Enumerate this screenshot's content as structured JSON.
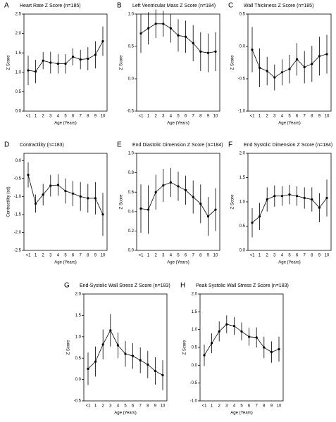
{
  "chart_data": [
    {
      "type": "line",
      "label": "A",
      "title": "Heart Rate Z Score (n=185)",
      "x_label": "Age (Years)",
      "y_label": "Z Score",
      "categories": [
        "<1",
        "1",
        "2",
        "3",
        "4",
        "5",
        "6",
        "7",
        "8",
        "9",
        "10"
      ],
      "series": [
        {
          "color": "#000000",
          "values": [
            1.05,
            1.02,
            1.3,
            1.25,
            1.22,
            1.22,
            1.4,
            1.33,
            1.35,
            1.45,
            1.8
          ],
          "errors": [
            0.38,
            0.3,
            0.22,
            0.28,
            0.25,
            0.25,
            0.22,
            0.25,
            0.3,
            0.35,
            0.38
          ]
        }
      ],
      "ylim": [
        0,
        2.5
      ],
      "yticks": [
        {
          "value": 0,
          "label": "0.0"
        },
        0.5,
        {
          "value": 1,
          "label": "1.0"
        },
        1.5,
        {
          "value": 2,
          "label": "2.0"
        },
        2.5
      ]
    },
    {
      "type": "line",
      "label": "B",
      "title": "Left Ventricular Mass Z Score (n=184)",
      "x_label": "Age (Years)",
      "y_label": "Z Score",
      "categories": [
        "<1",
        "1",
        "2",
        "3",
        "4",
        "5",
        "6",
        "7",
        "8",
        "9",
        "10"
      ],
      "series": [
        {
          "color": "#000000",
          "values": [
            0.7,
            0.78,
            0.85,
            0.85,
            0.78,
            0.67,
            0.65,
            0.55,
            0.42,
            0.4,
            0.42
          ],
          "errors": [
            0.3,
            0.25,
            0.22,
            0.2,
            0.22,
            0.25,
            0.25,
            0.28,
            0.3,
            0.3,
            0.3
          ]
        }
      ],
      "ylim": [
        -0.5,
        1.0
      ],
      "yticks": [
        -0.5,
        {
          "value": 0,
          "label": "0.0"
        },
        0.5,
        {
          "value": 1,
          "label": "1.0"
        }
      ]
    },
    {
      "type": "line",
      "label": "C",
      "title": "Wall Thickness Z Score (n=185)",
      "x_label": "Age (Years)",
      "y_label": "Z Score",
      "categories": [
        "<1",
        "1",
        "2",
        "3",
        "4",
        "5",
        "6",
        "7",
        "8",
        "9",
        "10"
      ],
      "series": [
        {
          "color": "#000000",
          "values": [
            -0.05,
            -0.33,
            -0.38,
            -0.48,
            -0.4,
            -0.35,
            -0.2,
            -0.32,
            -0.27,
            -0.15,
            -0.12
          ],
          "errors": [
            0.35,
            0.3,
            0.22,
            0.2,
            0.2,
            0.22,
            0.25,
            0.25,
            0.28,
            0.3,
            0.3
          ]
        }
      ],
      "ylim": [
        -1.0,
        0.5
      ],
      "yticks": [
        {
          "value": -1,
          "label": "-1.0"
        },
        -0.5,
        {
          "value": 0,
          "label": "0.0"
        },
        0.5
      ]
    },
    {
      "type": "line",
      "label": "D",
      "title": "Contractility (n=183)",
      "x_label": "Age (Years)",
      "y_label": "Contractility (sd)",
      "categories": [
        "<1",
        "1",
        "2",
        "3",
        "4",
        "5",
        "6",
        "7",
        "8",
        "9",
        "10"
      ],
      "series": [
        {
          "color": "#000000",
          "values": [
            -0.4,
            -1.2,
            -0.95,
            -0.7,
            -0.68,
            -0.85,
            -0.92,
            -1.0,
            -1.05,
            -1.05,
            -1.5
          ],
          "errors": [
            0.35,
            0.25,
            0.3,
            0.3,
            0.3,
            0.35,
            0.35,
            0.4,
            0.4,
            0.45,
            0.6
          ]
        }
      ],
      "ylim": [
        -2.5,
        0.2
      ],
      "yticks": [
        {
          "value": 0,
          "label": "0.0"
        },
        -0.5,
        {
          "value": -1,
          "label": "-1.0"
        },
        -1.5,
        {
          "value": -2,
          "label": "-2.0"
        },
        -2.5
      ]
    },
    {
      "type": "line",
      "label": "E",
      "title": "End Diastolic Dimension Z Score (n=184)",
      "x_label": "Age (Years)",
      "y_label": "Z Score",
      "categories": [
        "<1",
        "1",
        "2",
        "3",
        "4",
        "5",
        "6",
        "7",
        "8",
        "9",
        "10"
      ],
      "series": [
        {
          "color": "#000000",
          "values": [
            0.43,
            0.42,
            0.6,
            0.67,
            0.7,
            0.66,
            0.62,
            0.55,
            0.48,
            0.35,
            0.42
          ],
          "errors": [
            0.25,
            0.25,
            0.18,
            0.17,
            0.15,
            0.15,
            0.15,
            0.17,
            0.2,
            0.2,
            0.22
          ]
        }
      ],
      "ylim": [
        0,
        1.0
      ],
      "yticks": [
        {
          "value": 0,
          "label": "0.0"
        },
        0.2,
        0.4,
        0.6,
        0.8,
        {
          "value": 1,
          "label": "1.0"
        }
      ]
    },
    {
      "type": "line",
      "label": "F",
      "title": "End Systolic Dimension Z Score (n=184)",
      "x_label": "Age (Years)",
      "y_label": "Z Score",
      "categories": [
        "<1",
        "1",
        "2",
        "3",
        "4",
        "5",
        "6",
        "7",
        "8",
        "9",
        "10"
      ],
      "series": [
        {
          "color": "#000000",
          "values": [
            0.57,
            0.7,
            1.05,
            1.12,
            1.12,
            1.15,
            1.12,
            1.08,
            1.05,
            0.88,
            1.08
          ],
          "errors": [
            0.3,
            0.28,
            0.25,
            0.22,
            0.2,
            0.2,
            0.2,
            0.22,
            0.25,
            0.3,
            0.38
          ]
        }
      ],
      "ylim": [
        0,
        2.0
      ],
      "yticks": [
        {
          "value": 0,
          "label": "0.0"
        },
        0.5,
        {
          "value": 1,
          "label": "1.0"
        },
        1.5,
        {
          "value": 2,
          "label": "2.0"
        }
      ]
    },
    {
      "type": "line",
      "label": "G",
      "title": "End-Systolic Wall Stress Z Score (n=183)",
      "x_label": "Age (Years)",
      "y_label": "Z Score",
      "categories": [
        "<1",
        "1",
        "2",
        "3",
        "4",
        "5",
        "6",
        "7",
        "8",
        "9",
        "10"
      ],
      "series": [
        {
          "color": "#000000",
          "values": [
            0.25,
            0.42,
            0.82,
            1.15,
            0.8,
            0.6,
            0.55,
            0.45,
            0.35,
            0.2,
            0.1
          ],
          "errors": [
            0.38,
            0.35,
            0.35,
            0.38,
            0.3,
            0.3,
            0.3,
            0.3,
            0.32,
            0.32,
            0.35
          ]
        }
      ],
      "ylim": [
        -0.5,
        2.0
      ],
      "yticks": [
        -0.5,
        {
          "value": 0,
          "label": "0.0"
        },
        0.5,
        {
          "value": 1,
          "label": "1.0"
        },
        1.5,
        {
          "value": 2,
          "label": "2.0"
        }
      ]
    },
    {
      "type": "line",
      "label": "H",
      "title": "Peak Systolic Wall Stress Z Score (n=183)",
      "x_label": "Age (Years)",
      "y_label": "Z Score",
      "categories": [
        "<1",
        "1",
        "2",
        "3",
        "4",
        "5",
        "6",
        "7",
        "8",
        "9",
        "10"
      ],
      "series": [
        {
          "color": "#000000",
          "values": [
            0.28,
            0.62,
            0.95,
            1.15,
            1.1,
            0.95,
            0.8,
            0.78,
            0.5,
            0.37,
            0.45
          ],
          "errors": [
            0.3,
            0.28,
            0.28,
            0.25,
            0.25,
            0.25,
            0.25,
            0.28,
            0.3,
            0.3,
            0.35
          ]
        }
      ],
      "ylim": [
        -1.0,
        2.0
      ],
      "yticks": [
        {
          "value": -1,
          "label": "-1.0"
        },
        -0.5,
        {
          "value": 0,
          "label": "0.0"
        },
        0.5,
        {
          "value": 1,
          "label": "1.0"
        },
        1.5,
        {
          "value": 2,
          "label": "2.0"
        }
      ]
    }
  ]
}
